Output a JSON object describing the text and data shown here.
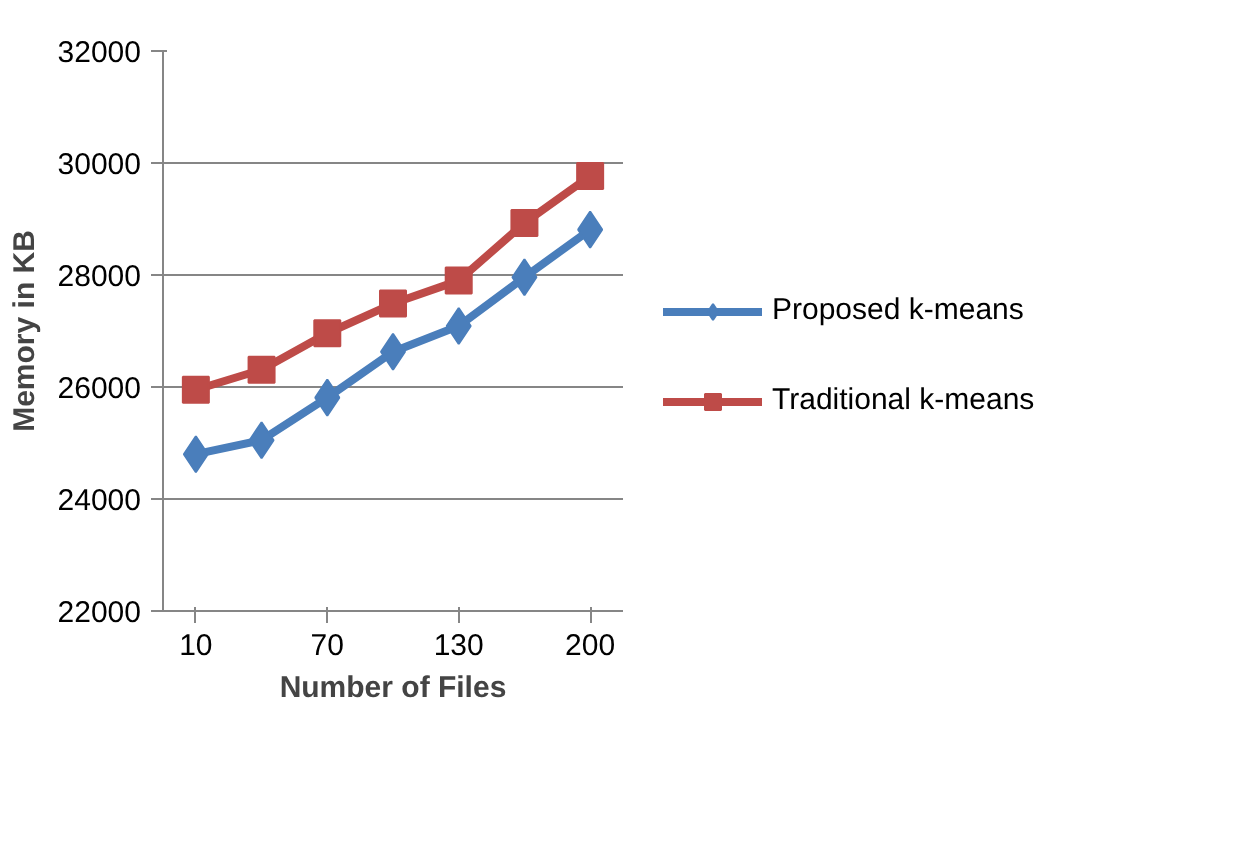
{
  "chart_data": {
    "type": "line",
    "xlabel": "Number of Files",
    "ylabel": "Memory in KB",
    "categories": [
      "10",
      null,
      "70",
      null,
      "130",
      null,
      "200"
    ],
    "series": [
      {
        "name": "Proposed k-means",
        "color": "#4a7ebb",
        "marker": "diamond",
        "values": [
          24800,
          25050,
          25810,
          26630,
          27090,
          27960,
          28810
        ]
      },
      {
        "name": "Traditional k-means",
        "color": "#be4b48",
        "marker": "square",
        "values": [
          25950,
          26310,
          26960,
          27490,
          27900,
          28930,
          29770
        ]
      }
    ],
    "ylim": [
      22000,
      32000
    ],
    "yticks": [
      22000,
      24000,
      26000,
      28000,
      30000,
      32000
    ],
    "grid": "y",
    "legend": "right"
  }
}
